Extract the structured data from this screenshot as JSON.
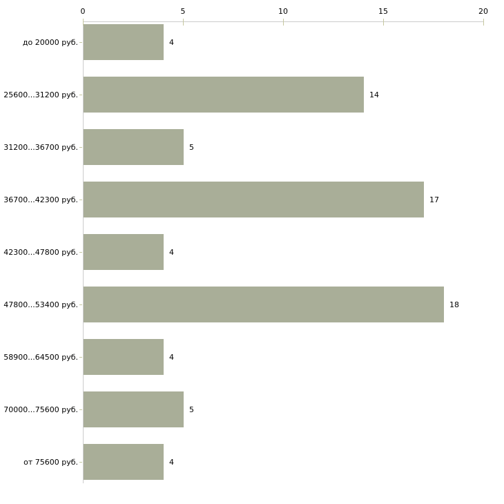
{
  "chart_data": {
    "type": "bar",
    "orientation": "horizontal",
    "title": "",
    "xlabel": "",
    "ylabel": "",
    "categories": [
      "до 20000 руб.",
      "25600...31200 руб.",
      "31200...36700 руб.",
      "36700...42300 руб.",
      "42300...47800 руб.",
      "47800...53400 руб.",
      "58900...64500 руб.",
      "70000...75600 руб.",
      "от 75600 руб."
    ],
    "values": [
      4,
      14,
      5,
      17,
      4,
      18,
      4,
      5,
      4
    ],
    "xlim": [
      0,
      20
    ],
    "x_ticks": [
      0,
      5,
      10,
      15,
      20
    ],
    "x_tick_labels": [
      "0",
      "5",
      "10",
      "15",
      "20"
    ],
    "grid": false,
    "legend_position": "none",
    "value_labels_shown": true,
    "colors": {
      "bar_fill": "#a9ae98",
      "tick_mark": "#c6c8a0",
      "axis_line": "#cccccc",
      "text": "#000000",
      "background": "#ffffff"
    }
  }
}
